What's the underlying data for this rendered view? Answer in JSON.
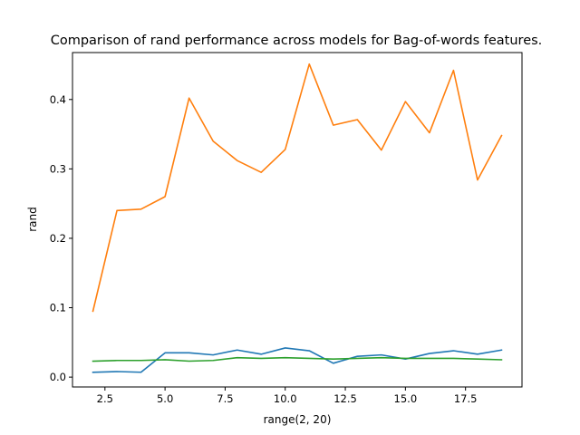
{
  "chart_data": {
    "type": "line",
    "title": "Comparison of rand performance across models for Bag-of-words features.",
    "xlabel": "range(2, 20)",
    "ylabel": "rand",
    "x": [
      2,
      3,
      4,
      5,
      6,
      7,
      8,
      9,
      10,
      11,
      12,
      13,
      14,
      15,
      16,
      17,
      18,
      19
    ],
    "xlim": [
      1.15,
      19.85
    ],
    "ylim": [
      -0.0142,
      0.4676
    ],
    "xticks": [
      2.5,
      5.0,
      7.5,
      10.0,
      12.5,
      15.0,
      17.5
    ],
    "xtick_labels": [
      "2.5",
      "5.0",
      "7.5",
      "10.0",
      "12.5",
      "15.0",
      "17.5"
    ],
    "yticks": [
      0.0,
      0.1,
      0.2,
      0.3,
      0.4
    ],
    "ytick_labels": [
      "0.0",
      "0.1",
      "0.2",
      "0.3",
      "0.4"
    ],
    "grid": false,
    "legend": false,
    "series": [
      {
        "color": "#1f77b4",
        "values": [
          0.007,
          0.008,
          0.007,
          0.035,
          0.035,
          0.032,
          0.039,
          0.033,
          0.042,
          0.038,
          0.02,
          0.03,
          0.032,
          0.026,
          0.034,
          0.038,
          0.033,
          0.039
        ]
      },
      {
        "color": "#ff7f0e",
        "values": [
          0.095,
          0.24,
          0.242,
          0.26,
          0.402,
          0.34,
          0.312,
          0.295,
          0.328,
          0.451,
          0.363,
          0.371,
          0.327,
          0.397,
          0.352,
          0.442,
          0.284,
          0.348
        ]
      },
      {
        "color": "#2ca02c",
        "values": [
          0.023,
          0.024,
          0.024,
          0.025,
          0.023,
          0.024,
          0.028,
          0.027,
          0.028,
          0.027,
          0.026,
          0.027,
          0.028,
          0.027,
          0.027,
          0.027,
          0.026,
          0.025
        ]
      }
    ]
  }
}
